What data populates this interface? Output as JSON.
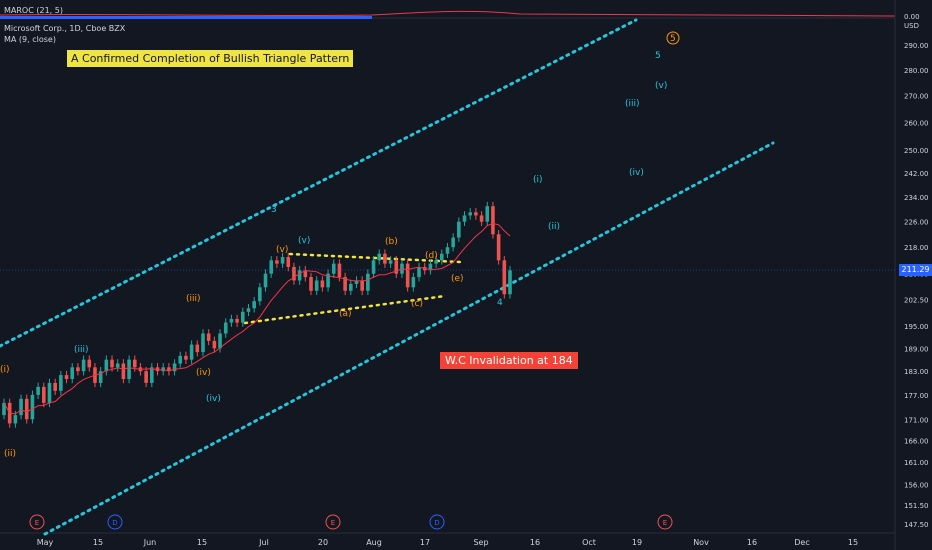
{
  "indicator_pane": {
    "label": "MAROC (21, 5)",
    "value": "0.00"
  },
  "legend": {
    "symbol": "Microsoft Corp., 1D, Cboe BZX",
    "ma": "MA (9, close)"
  },
  "annotations": {
    "banner": "A Confirmed Completion of Bullish Triangle Pattern",
    "invalidation": "W.C Invalidation at 184"
  },
  "axis": {
    "currency": "USD",
    "last_price": "211.29"
  },
  "colors": {
    "background": "#131722",
    "up": "#26a69a",
    "down": "#ef5350",
    "ma": "#f23645",
    "channel": "#26c6da",
    "triangle": "#f0e442",
    "wave_orange": "#ff9800",
    "wave_cyan": "#26c6da"
  },
  "chart_data": {
    "type": "candlestick",
    "title": "Microsoft Corp., 1D, Cboe BZX",
    "y_ticks": [
      "290.00",
      "280.00",
      "270.00",
      "260.00",
      "250.00",
      "242.00",
      "234.00",
      "226.00",
      "218.00",
      "210.00",
      "202.50",
      "195.00",
      "189.00",
      "183.00",
      "177.00",
      "171.00",
      "166.00",
      "161.00",
      "156.00",
      "151.50",
      "147.50"
    ],
    "ylim": [
      147.5,
      290
    ],
    "y_scale": "log",
    "x_ticks": [
      "May",
      "15",
      "Jun",
      "15",
      "Jul",
      "20",
      "Aug",
      "17",
      "Sep",
      "16",
      "Oct",
      "19",
      "Nov",
      "16",
      "Dec",
      "15"
    ],
    "events": [
      "E",
      "D",
      "E",
      "D",
      "E"
    ],
    "series": [
      {
        "name": "MA (9, close)"
      }
    ],
    "wave_labels": [
      {
        "text": "(i)",
        "color": "orange"
      },
      {
        "text": "(ii)",
        "color": "orange"
      },
      {
        "text": "(iii)",
        "color": "cyan"
      },
      {
        "text": "(iii)",
        "color": "orange"
      },
      {
        "text": "(iv)",
        "color": "orange"
      },
      {
        "text": "(iv)",
        "color": "cyan"
      },
      {
        "text": "(v)",
        "color": "orange"
      },
      {
        "text": "(v)",
        "color": "cyan"
      },
      {
        "text": "3",
        "color": "cyan"
      },
      {
        "text": "(a)",
        "color": "orange"
      },
      {
        "text": "(b)",
        "color": "orange"
      },
      {
        "text": "(c)",
        "color": "orange"
      },
      {
        "text": "(d)",
        "color": "orange"
      },
      {
        "text": "(e)",
        "color": "orange"
      },
      {
        "text": "4",
        "color": "cyan"
      },
      {
        "text": "(i)",
        "color": "cyan"
      },
      {
        "text": "(ii)",
        "color": "cyan"
      },
      {
        "text": "(iii)",
        "color": "cyan"
      },
      {
        "text": "(iv)",
        "color": "cyan"
      },
      {
        "text": "(v)",
        "color": "cyan"
      },
      {
        "text": "5",
        "color": "cyan"
      },
      {
        "text": "5",
        "color": "orange"
      }
    ]
  }
}
